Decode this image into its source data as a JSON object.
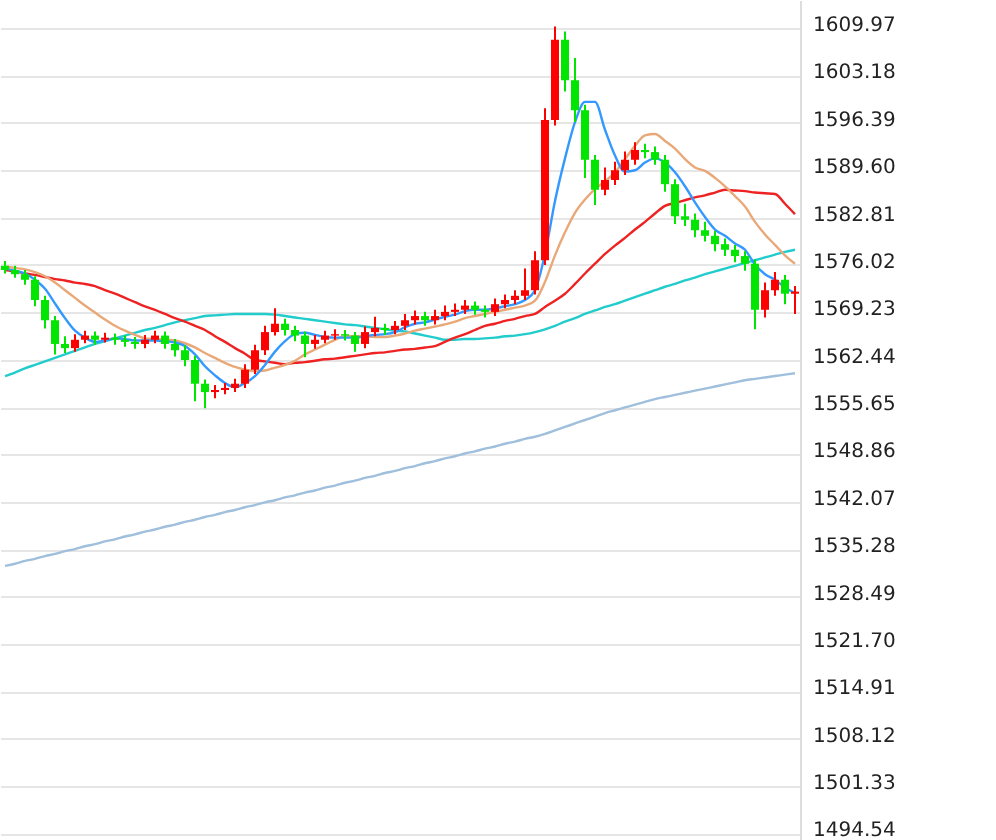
{
  "chart_data": {
    "type": "candlestick",
    "tick_labels": "y",
    "grid": "y",
    "ylim": [
      1493.6,
      1614.0
    ],
    "yticks": [
      1609.97,
      1603.18,
      1596.39,
      {
        "value": 1589.6,
        "label": "1589.60"
      },
      1582.81,
      1576.02,
      1569.23,
      1562.44,
      1555.65,
      1548.86,
      1542.07,
      1535.28,
      1528.49,
      {
        "value": 1521.7,
        "label": "1521.70"
      },
      1514.91,
      1508.12,
      1501.33,
      1494.54
    ],
    "categories": [
      null,
      null,
      null,
      null,
      null,
      null,
      null,
      null,
      null,
      null,
      null,
      null,
      null,
      null,
      null,
      null,
      null,
      null,
      null,
      null,
      null,
      null,
      null,
      null,
      null,
      null,
      null,
      null,
      null,
      null,
      null,
      null,
      null,
      null,
      null,
      null,
      null,
      null,
      null,
      null,
      null,
      null,
      null,
      null,
      null,
      null,
      null,
      null,
      null,
      null,
      null,
      null,
      null,
      null,
      null,
      null,
      null,
      null,
      null,
      null,
      null,
      null,
      null,
      null,
      null,
      null,
      null,
      null,
      null,
      null,
      null,
      null,
      null,
      null,
      null,
      null,
      null,
      null,
      null,
      null
    ],
    "ohlc": [
      [
        1575.9,
        1576.6,
        1574.8,
        1575.3
      ],
      [
        1575.3,
        1575.9,
        1574.2,
        1574.7
      ],
      [
        1574.7,
        1575.3,
        1573.2,
        1573.9
      ],
      [
        1573.9,
        1574.4,
        1570.1,
        1571.0
      ],
      [
        1571.0,
        1571.6,
        1566.9,
        1568.1
      ],
      [
        1568.1,
        1568.7,
        1563.2,
        1564.7
      ],
      [
        1564.7,
        1565.8,
        1563.4,
        1564.1
      ],
      [
        1564.1,
        1566.1,
        1563.6,
        1565.3
      ],
      [
        1565.3,
        1566.6,
        1564.8,
        1565.9
      ],
      [
        1565.9,
        1566.5,
        1564.6,
        1565.3
      ],
      [
        1565.3,
        1566.3,
        1564.9,
        1565.6
      ],
      [
        1565.6,
        1566.2,
        1564.6,
        1565.3
      ],
      [
        1565.3,
        1565.9,
        1564.3,
        1565.0
      ],
      [
        1565.0,
        1565.7,
        1564.0,
        1564.7
      ],
      [
        1564.7,
        1566.0,
        1564.1,
        1565.3
      ],
      [
        1565.3,
        1566.6,
        1564.8,
        1565.9
      ],
      [
        1565.9,
        1566.5,
        1564.0,
        1564.7
      ],
      [
        1564.7,
        1565.4,
        1562.9,
        1563.8
      ],
      [
        1563.8,
        1564.5,
        1561.5,
        1562.4
      ],
      [
        1562.4,
        1563.0,
        1556.5,
        1559.0
      ],
      [
        1559.0,
        1559.6,
        1555.5,
        1557.8
      ],
      [
        1557.8,
        1558.8,
        1556.9,
        1558.1
      ],
      [
        1558.1,
        1559.1,
        1557.5,
        1558.4
      ],
      [
        1558.4,
        1559.7,
        1557.8,
        1559.0
      ],
      [
        1559.0,
        1561.8,
        1558.4,
        1561.0
      ],
      [
        1561.0,
        1564.6,
        1560.4,
        1563.8
      ],
      [
        1563.8,
        1567.3,
        1563.1,
        1566.4
      ],
      [
        1566.4,
        1569.8,
        1565.9,
        1567.6
      ],
      [
        1567.6,
        1568.3,
        1565.9,
        1566.7
      ],
      [
        1566.7,
        1567.3,
        1565.1,
        1565.9
      ],
      [
        1565.9,
        1566.5,
        1562.8,
        1564.7
      ],
      [
        1564.7,
        1566.0,
        1564.0,
        1565.3
      ],
      [
        1565.3,
        1566.6,
        1564.8,
        1565.9
      ],
      [
        1565.9,
        1566.8,
        1565.3,
        1566.1
      ],
      [
        1566.1,
        1566.7,
        1565.2,
        1565.9
      ],
      [
        1565.9,
        1566.4,
        1563.6,
        1564.7
      ],
      [
        1564.7,
        1567.2,
        1564.1,
        1566.4
      ],
      [
        1566.4,
        1568.6,
        1565.8,
        1567.0
      ],
      [
        1567.0,
        1567.6,
        1566.0,
        1566.7
      ],
      [
        1566.7,
        1568.0,
        1566.1,
        1567.3
      ],
      [
        1567.3,
        1569.0,
        1566.7,
        1568.1
      ],
      [
        1568.1,
        1569.5,
        1567.5,
        1568.7
      ],
      [
        1568.7,
        1569.3,
        1567.3,
        1568.1
      ],
      [
        1568.1,
        1569.6,
        1567.5,
        1568.7
      ],
      [
        1568.7,
        1570.2,
        1568.1,
        1569.3
      ],
      [
        1569.3,
        1570.5,
        1568.7,
        1569.6
      ],
      [
        1569.6,
        1571.0,
        1569.0,
        1570.2
      ],
      [
        1570.2,
        1570.8,
        1568.9,
        1569.6
      ],
      [
        1569.6,
        1570.2,
        1568.5,
        1569.3
      ],
      [
        1569.3,
        1571.2,
        1568.7,
        1570.4
      ],
      [
        1570.4,
        1571.8,
        1569.8,
        1571.0
      ],
      [
        1571.0,
        1572.4,
        1570.4,
        1571.6
      ],
      [
        1571.6,
        1575.5,
        1571.0,
        1572.4
      ],
      [
        1572.4,
        1578.0,
        1571.8,
        1576.7
      ],
      [
        1576.7,
        1598.5,
        1576.0,
        1596.8
      ],
      [
        1596.8,
        1610.2,
        1596.0,
        1608.3
      ],
      [
        1608.3,
        1609.5,
        1600.9,
        1602.5
      ],
      [
        1602.5,
        1605.7,
        1596.5,
        1598.2
      ],
      [
        1598.2,
        1599.0,
        1588.5,
        1591.1
      ],
      [
        1591.1,
        1591.8,
        1584.6,
        1586.8
      ],
      [
        1586.8,
        1590.0,
        1586.0,
        1588.2
      ],
      [
        1588.2,
        1590.8,
        1587.5,
        1589.6
      ],
      [
        1589.6,
        1592.3,
        1588.9,
        1591.1
      ],
      [
        1591.1,
        1593.6,
        1590.4,
        1592.5
      ],
      [
        1592.5,
        1593.4,
        1591.3,
        1592.2
      ],
      [
        1592.2,
        1593.0,
        1590.4,
        1591.1
      ],
      [
        1591.1,
        1591.8,
        1586.5,
        1587.6
      ],
      [
        1587.6,
        1588.3,
        1581.9,
        1583.0
      ],
      [
        1583.0,
        1584.8,
        1581.6,
        1582.5
      ],
      [
        1582.5,
        1583.4,
        1580.0,
        1581.0
      ],
      [
        1581.0,
        1582.2,
        1579.4,
        1580.2
      ],
      [
        1580.2,
        1580.9,
        1578.0,
        1579.0
      ],
      [
        1579.0,
        1579.8,
        1577.3,
        1578.2
      ],
      [
        1578.2,
        1578.9,
        1576.4,
        1577.3
      ],
      [
        1577.3,
        1578.0,
        1575.2,
        1576.2
      ],
      [
        1576.2,
        1576.8,
        1566.8,
        1569.6
      ],
      [
        1569.6,
        1573.5,
        1568.5,
        1572.4
      ],
      [
        1572.4,
        1575.0,
        1571.6,
        1573.9
      ],
      [
        1573.9,
        1574.6,
        1570.4,
        1571.9
      ],
      [
        1571.9,
        1573.0,
        1569.0,
        1572.2
      ]
    ],
    "colors": [
      "#00e600",
      "#00e600",
      "#00e600",
      "#00e600",
      "#00e600",
      "#00e600",
      "#00e600",
      "#ff0000",
      "#ff0000",
      "#00e600",
      "#ff0000",
      "#00e600",
      "#00e600",
      "#00e600",
      "#ff0000",
      "#ff0000",
      "#00e600",
      "#00e600",
      "#00e600",
      "#00e600",
      "#00e600",
      "#ff0000",
      "#ff0000",
      "#ff0000",
      "#ff0000",
      "#ff0000",
      "#ff0000",
      "#ff0000",
      "#00e600",
      "#00e600",
      "#00e600",
      "#ff0000",
      "#ff0000",
      "#ff0000",
      "#00e600",
      "#00e600",
      "#ff0000",
      "#ff0000",
      "#00e600",
      "#ff0000",
      "#ff0000",
      "#ff0000",
      "#00e600",
      "#ff0000",
      "#ff0000",
      "#ff0000",
      "#ff0000",
      "#00e600",
      "#00e600",
      "#ff0000",
      "#ff0000",
      "#ff0000",
      "#ff0000",
      "#ff0000",
      "#ff0000",
      "#ff0000",
      "#00e600",
      "#00e600",
      "#00e600",
      "#00e600",
      "#ff0000",
      "#ff0000",
      "#ff0000",
      "#ff0000",
      "#00e600",
      "#00e600",
      "#00e600",
      "#00e600",
      "#00e600",
      "#00e600",
      "#00e600",
      "#00e600",
      "#00e600",
      "#00e600",
      "#00e600",
      "#00e600",
      "#ff0000",
      "#ff0000",
      "#00e600",
      "#ff0000"
    ],
    "series": [
      {
        "type": "line",
        "color": "#9fbfdc",
        "values": [
          1532.9,
          1533.2,
          1533.6,
          1533.9,
          1534.3,
          1534.6,
          1535.0,
          1535.3,
          1535.7,
          1536.0,
          1536.4,
          1536.7,
          1537.1,
          1537.4,
          1537.8,
          1538.1,
          1538.5,
          1538.8,
          1539.2,
          1539.5,
          1539.9,
          1540.2,
          1540.6,
          1540.9,
          1541.3,
          1541.6,
          1542.0,
          1542.3,
          1542.7,
          1543.0,
          1543.4,
          1543.7,
          1544.1,
          1544.4,
          1544.8,
          1545.1,
          1545.5,
          1545.8,
          1546.2,
          1546.5,
          1546.9,
          1547.2,
          1547.6,
          1547.9,
          1548.3,
          1548.6,
          1549.0,
          1549.3,
          1549.7,
          1550.0,
          1550.4,
          1550.7,
          1551.1,
          1551.4,
          1551.8,
          1552.3,
          1552.8,
          1553.3,
          1553.8,
          1554.3,
          1554.8,
          1555.2,
          1555.6,
          1556.0,
          1556.4,
          1556.8,
          1557.1,
          1557.4,
          1557.7,
          1558.0,
          1558.3,
          1558.6,
          1558.9,
          1559.2,
          1559.5,
          1559.7,
          1559.9,
          1560.1,
          1560.3,
          1560.5
        ]
      },
      {
        "type": "line",
        "color": "#22cccc",
        "values": [
          1560.1,
          1560.6,
          1561.2,
          1561.7,
          1562.2,
          1562.7,
          1563.2,
          1563.7,
          1564.2,
          1564.7,
          1565.1,
          1565.5,
          1565.9,
          1566.3,
          1566.7,
          1567.0,
          1567.4,
          1567.8,
          1568.1,
          1568.4,
          1568.7,
          1568.8,
          1568.9,
          1569.0,
          1569.0,
          1569.0,
          1569.0,
          1568.9,
          1568.7,
          1568.5,
          1568.3,
          1568.1,
          1567.9,
          1567.7,
          1567.5,
          1567.4,
          1567.2,
          1567.0,
          1566.8,
          1566.6,
          1566.5,
          1566.2,
          1565.9,
          1565.6,
          1565.3,
          1565.3,
          1565.4,
          1565.4,
          1565.5,
          1565.6,
          1565.8,
          1565.9,
          1566.1,
          1566.4,
          1566.8,
          1567.3,
          1567.9,
          1568.4,
          1569.0,
          1569.5,
          1570.0,
          1570.4,
          1570.9,
          1571.4,
          1571.9,
          1572.4,
          1572.9,
          1573.3,
          1573.8,
          1574.2,
          1574.7,
          1575.1,
          1575.5,
          1575.9,
          1576.3,
          1576.7,
          1577.1,
          1577.5,
          1577.9,
          1578.2
        ]
      },
      {
        "type": "line",
        "color": "#ee2222",
        "values": [
          1575.3,
          1575.1,
          1574.8,
          1574.6,
          1574.3,
          1574.0,
          1573.8,
          1573.5,
          1573.3,
          1573.0,
          1572.4,
          1571.9,
          1571.3,
          1570.7,
          1570.1,
          1569.6,
          1569.0,
          1568.4,
          1567.9,
          1567.3,
          1566.7,
          1565.8,
          1565.0,
          1564.1,
          1563.3,
          1562.4,
          1562.2,
          1562.0,
          1561.8,
          1562.0,
          1562.1,
          1562.3,
          1562.5,
          1562.6,
          1562.8,
          1563.0,
          1563.2,
          1563.4,
          1563.5,
          1563.7,
          1563.9,
          1564.0,
          1564.2,
          1564.4,
          1565.0,
          1565.6,
          1566.1,
          1566.7,
          1567.3,
          1567.6,
          1568.0,
          1568.3,
          1568.7,
          1569.0,
          1570.0,
          1570.9,
          1571.9,
          1573.3,
          1574.8,
          1576.2,
          1577.6,
          1578.8,
          1579.9,
          1581.1,
          1582.2,
          1583.4,
          1584.5,
          1584.9,
          1585.3,
          1585.7,
          1586.0,
          1586.4,
          1586.8,
          1586.7,
          1586.6,
          1586.4,
          1586.3,
          1586.2,
          1584.8,
          1583.3
        ]
      },
      {
        "type": "line",
        "color": "#e8a878",
        "values": [
          1575.8,
          1575.6,
          1575.4,
          1575.0,
          1574.4,
          1573.5,
          1572.4,
          1571.3,
          1570.2,
          1569.2,
          1568.2,
          1567.3,
          1566.6,
          1566.0,
          1565.5,
          1565.4,
          1565.3,
          1565.2,
          1564.8,
          1564.2,
          1563.4,
          1562.7,
          1562.0,
          1561.4,
          1561.0,
          1560.8,
          1560.9,
          1561.3,
          1561.7,
          1562.3,
          1563.2,
          1563.9,
          1564.6,
          1565.3,
          1565.8,
          1565.8,
          1565.8,
          1565.7,
          1565.7,
          1565.9,
          1566.2,
          1566.6,
          1566.9,
          1567.2,
          1567.5,
          1567.9,
          1568.4,
          1568.7,
          1569.0,
          1569.3,
          1569.6,
          1569.9,
          1570.2,
          1570.9,
          1573.6,
          1577.4,
          1580.7,
          1583.5,
          1585.4,
          1586.9,
          1588.0,
          1589.3,
          1591.2,
          1593.1,
          1594.6,
          1594.8,
          1593.8,
          1592.7,
          1591.2,
          1590.0,
          1589.5,
          1588.5,
          1587.3,
          1585.9,
          1584.4,
          1582.2,
          1580.4,
          1578.9,
          1577.4,
          1576.2
        ]
      },
      {
        "type": "line",
        "color": "#3399ff",
        "values": [
          1575.5,
          1575.2,
          1574.8,
          1573.9,
          1572.6,
          1570.5,
          1568.4,
          1566.6,
          1565.6,
          1565.0,
          1565.2,
          1565.5,
          1565.4,
          1565.2,
          1565.2,
          1565.2,
          1565.1,
          1564.9,
          1564.4,
          1563.2,
          1561.5,
          1560.2,
          1559.1,
          1558.5,
          1559.1,
          1560.1,
          1561.7,
          1563.6,
          1565.1,
          1566.1,
          1566.3,
          1566.0,
          1565.7,
          1565.6,
          1565.6,
          1565.6,
          1565.8,
          1566.0,
          1566.1,
          1566.4,
          1567.1,
          1567.6,
          1567.8,
          1568.2,
          1568.6,
          1568.9,
          1569.4,
          1569.6,
          1569.6,
          1569.8,
          1570.1,
          1570.4,
          1571.0,
          1572.4,
          1577.6,
          1585.2,
          1591.3,
          1596.5,
          1599.4,
          1599.4,
          1595.4,
          1591.7,
          1589.4,
          1589.6,
          1590.7,
          1591.3,
          1590.7,
          1589.3,
          1587.3,
          1585.0,
          1582.9,
          1581.1,
          1580.2,
          1579.1,
          1578.2,
          1576.1,
          1574.7,
          1573.9,
          1572.8,
          1572.0
        ]
      }
    ]
  }
}
